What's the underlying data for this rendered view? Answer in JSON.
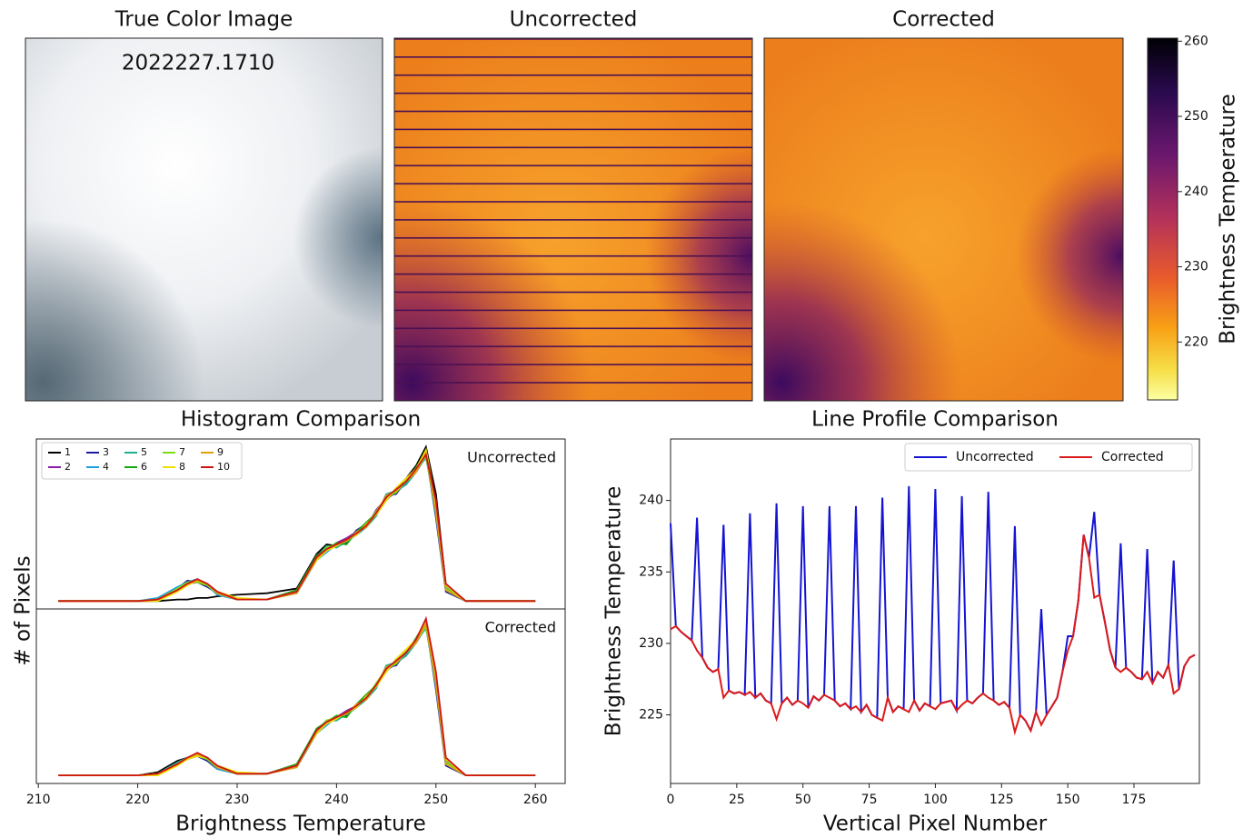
{
  "chart_data": [
    {
      "type": "image",
      "title": "True Color Image",
      "annotation": "2022227.1710"
    },
    {
      "type": "image",
      "title": "Uncorrected"
    },
    {
      "type": "image",
      "title": "Corrected"
    },
    {
      "type": "colorbar",
      "ylabel": "Brightness Temperature",
      "ylim": [
        212.3,
        260.4
      ],
      "yticks": [
        220,
        230,
        240,
        250,
        260
      ]
    },
    {
      "type": "line",
      "title": "Histogram Comparison",
      "label": "Uncorrected",
      "ylabel": "# of Pixels",
      "x": [
        212,
        216,
        220,
        222,
        224,
        225,
        226,
        227,
        228,
        230,
        233,
        236,
        238,
        239,
        240,
        241,
        242,
        243,
        244,
        245,
        246,
        247,
        248,
        249,
        250,
        251,
        253,
        256,
        260
      ],
      "xlim": [
        209.8,
        263
      ],
      "ylim": [
        -3,
        105
      ],
      "series": [
        {
          "name": "1",
          "color": "#000000",
          "values": [
            2,
            2,
            2,
            2,
            3,
            3,
            4,
            4,
            5,
            6,
            7,
            10,
            32,
            38,
            37,
            41,
            44,
            52,
            57,
            66,
            73,
            80,
            88,
            100,
            70,
            12,
            2,
            2,
            2
          ]
        },
        {
          "name": "2",
          "color": "#8a1fa8",
          "values": [
            2,
            2,
            2,
            3,
            9,
            13,
            14,
            12,
            7,
            3,
            3,
            9,
            29,
            34,
            39,
            42,
            46,
            49,
            60,
            67,
            71,
            77,
            84,
            94,
            58,
            9,
            2,
            2,
            2
          ]
        },
        {
          "name": "3",
          "color": "#1c1ca0",
          "values": [
            2,
            2,
            2,
            3,
            10,
            15,
            14,
            11,
            7,
            3,
            3,
            8,
            31,
            36,
            37,
            39,
            47,
            51,
            57,
            69,
            70,
            79,
            86,
            96,
            55,
            8,
            2,
            2,
            2
          ]
        },
        {
          "name": "4",
          "color": "#1f9fe0",
          "values": [
            2,
            2,
            2,
            4,
            11,
            14,
            16,
            12,
            6,
            3,
            3,
            7,
            28,
            33,
            38,
            41,
            45,
            50,
            59,
            66,
            74,
            77,
            85,
            93,
            62,
            11,
            2,
            2,
            2
          ]
        },
        {
          "name": "5",
          "color": "#1fae90",
          "values": [
            2,
            2,
            2,
            3,
            10,
            13,
            15,
            13,
            7,
            3,
            3,
            8,
            30,
            37,
            36,
            40,
            44,
            49,
            56,
            70,
            72,
            76,
            84,
            95,
            57,
            9,
            2,
            2,
            2
          ]
        },
        {
          "name": "6",
          "color": "#12a812",
          "values": [
            2,
            2,
            2,
            3,
            9,
            14,
            15,
            12,
            8,
            3,
            3,
            9,
            31,
            35,
            39,
            38,
            46,
            52,
            58,
            67,
            73,
            78,
            87,
            97,
            63,
            12,
            2,
            2,
            2
          ]
        },
        {
          "name": "7",
          "color": "#7cdc10",
          "values": [
            2,
            2,
            2,
            3,
            10,
            14,
            14,
            12,
            7,
            3,
            3,
            8,
            29,
            36,
            38,
            40,
            45,
            50,
            59,
            68,
            71,
            79,
            85,
            94,
            60,
            10,
            2,
            2,
            2
          ]
        },
        {
          "name": "8",
          "color": "#ece000",
          "values": [
            2,
            2,
            2,
            2,
            8,
            12,
            15,
            13,
            8,
            4,
            3,
            8,
            28,
            34,
            37,
            41,
            44,
            51,
            57,
            66,
            74,
            80,
            86,
            98,
            64,
            12,
            2,
            2,
            2
          ]
        },
        {
          "name": "9",
          "color": "#e0a010",
          "values": [
            2,
            2,
            2,
            3,
            9,
            13,
            15,
            13,
            7,
            3,
            3,
            7,
            29,
            35,
            38,
            40,
            46,
            49,
            58,
            69,
            72,
            78,
            84,
            96,
            59,
            9,
            2,
            2,
            2
          ]
        },
        {
          "name": "10",
          "color": "#d01414",
          "values": [
            2,
            2,
            2,
            3,
            9,
            13,
            16,
            13,
            8,
            3,
            3,
            8,
            30,
            35,
            38,
            41,
            45,
            50,
            58,
            68,
            73,
            78,
            86,
            95,
            66,
            13,
            2,
            2,
            2
          ]
        }
      ]
    },
    {
      "type": "line",
      "label": "Corrected",
      "xlabel": "Brightness Temperature",
      "x": [
        212,
        216,
        220,
        222,
        224,
        225,
        226,
        227,
        228,
        230,
        233,
        236,
        238,
        239,
        240,
        241,
        242,
        243,
        244,
        245,
        246,
        247,
        248,
        249,
        250,
        251,
        253,
        256,
        260
      ],
      "xlim": [
        209.8,
        263
      ],
      "xticks": [
        210,
        220,
        230,
        240,
        250,
        260
      ],
      "ylim": [
        -3,
        105
      ],
      "series": [
        {
          "color": "#000000",
          "values": [
            2,
            2,
            2,
            4,
            11,
            13,
            14,
            11,
            6,
            3,
            3,
            8,
            30,
            35,
            37,
            40,
            44,
            50,
            57,
            67,
            72,
            78,
            85,
            96,
            58,
            9,
            2,
            2,
            2
          ]
        },
        {
          "color": "#8a1fa8",
          "values": [
            2,
            2,
            2,
            3,
            9,
            12,
            14,
            12,
            7,
            3,
            3,
            9,
            29,
            34,
            38,
            42,
            45,
            49,
            59,
            67,
            71,
            77,
            84,
            94,
            58,
            9,
            2,
            2,
            2
          ]
        },
        {
          "color": "#1c1ca0",
          "values": [
            2,
            2,
            2,
            3,
            10,
            13,
            14,
            11,
            7,
            3,
            3,
            8,
            31,
            35,
            37,
            39,
            46,
            51,
            57,
            69,
            70,
            79,
            86,
            96,
            55,
            8,
            2,
            2,
            2
          ]
        },
        {
          "color": "#1f9fe0",
          "values": [
            2,
            2,
            2,
            3,
            10,
            13,
            15,
            12,
            6,
            3,
            3,
            7,
            28,
            33,
            38,
            41,
            45,
            50,
            59,
            66,
            74,
            77,
            85,
            93,
            62,
            11,
            2,
            2,
            2
          ]
        },
        {
          "color": "#1fae90",
          "values": [
            2,
            2,
            2,
            3,
            10,
            13,
            15,
            13,
            7,
            3,
            3,
            8,
            30,
            36,
            36,
            40,
            44,
            49,
            56,
            70,
            72,
            76,
            84,
            95,
            57,
            9,
            2,
            2,
            2
          ]
        },
        {
          "color": "#12a812",
          "values": [
            2,
            2,
            2,
            3,
            9,
            13,
            15,
            12,
            8,
            3,
            3,
            9,
            31,
            35,
            39,
            38,
            46,
            52,
            58,
            67,
            73,
            78,
            87,
            97,
            63,
            12,
            2,
            2,
            2
          ]
        },
        {
          "color": "#7cdc10",
          "values": [
            2,
            2,
            2,
            3,
            9,
            13,
            14,
            12,
            7,
            3,
            3,
            8,
            29,
            36,
            38,
            40,
            45,
            50,
            59,
            68,
            71,
            79,
            85,
            94,
            60,
            10,
            2,
            2,
            2
          ]
        },
        {
          "color": "#ece000",
          "values": [
            2,
            2,
            2,
            2,
            8,
            12,
            14,
            13,
            8,
            4,
            3,
            8,
            28,
            34,
            37,
            41,
            44,
            51,
            57,
            66,
            74,
            80,
            86,
            98,
            64,
            12,
            2,
            2,
            2
          ]
        },
        {
          "color": "#e0a010",
          "values": [
            2,
            2,
            2,
            3,
            9,
            13,
            15,
            13,
            7,
            3,
            3,
            7,
            29,
            35,
            38,
            40,
            46,
            49,
            58,
            69,
            72,
            78,
            84,
            96,
            59,
            9,
            2,
            2,
            2
          ]
        },
        {
          "color": "#d01414",
          "values": [
            2,
            2,
            2,
            3,
            9,
            13,
            16,
            13,
            8,
            3,
            3,
            8,
            30,
            35,
            38,
            41,
            45,
            50,
            58,
            68,
            73,
            78,
            86,
            99,
            66,
            13,
            2,
            2,
            2
          ]
        }
      ]
    },
    {
      "type": "line",
      "title": "Line Profile Comparison",
      "xlabel": "Vertical Pixel Number",
      "ylabel": "Brightness Temperature",
      "legend": "upper right",
      "xlim": [
        0,
        199.7
      ],
      "xticks": [
        0,
        25,
        50,
        75,
        100,
        125,
        150,
        175
      ],
      "ylim": [
        220.2,
        244.3
      ],
      "yticks": [
        225,
        230,
        235,
        240
      ],
      "x": [
        0,
        2,
        4,
        6,
        8,
        10,
        12,
        14,
        16,
        18,
        20,
        22,
        24,
        26,
        28,
        30,
        32,
        34,
        36,
        38,
        40,
        42,
        44,
        46,
        48,
        50,
        52,
        54,
        56,
        58,
        60,
        62,
        64,
        66,
        68,
        70,
        72,
        74,
        76,
        78,
        80,
        82,
        84,
        86,
        88,
        90,
        92,
        94,
        96,
        98,
        100,
        102,
        104,
        106,
        108,
        110,
        112,
        114,
        116,
        118,
        120,
        122,
        124,
        126,
        128,
        130,
        132,
        134,
        136,
        138,
        140,
        142,
        144,
        146,
        148,
        150,
        152,
        154,
        156,
        158,
        160,
        162,
        164,
        166,
        168,
        170,
        172,
        174,
        176,
        178,
        180,
        182,
        184,
        186,
        188,
        190,
        192,
        194,
        196,
        198
      ],
      "series": [
        {
          "name": "Uncorrected",
          "color": "#1414d2",
          "values": [
            238.4,
            231.2,
            230.8,
            230.5,
            230.2,
            238.8,
            229,
            228.3,
            228,
            228.2,
            238.3,
            226.7,
            226.5,
            226.6,
            226.4,
            239.1,
            226.2,
            226.5,
            226,
            225.8,
            239.8,
            225.8,
            226.2,
            225.7,
            226,
            239.6,
            225.5,
            226.3,
            226,
            226.4,
            239.6,
            226,
            225.6,
            225.8,
            225.4,
            239.6,
            225.2,
            225.7,
            225,
            224.8,
            240.2,
            226.2,
            225.2,
            225.6,
            225.4,
            241,
            226,
            225.3,
            225.8,
            225.6,
            240.8,
            225.8,
            225.9,
            226,
            225.3,
            240.3,
            226,
            225.8,
            226.2,
            226.5,
            240.6,
            226,
            225.7,
            225.9,
            225.5,
            238.2,
            225,
            224.6,
            223.9,
            225.2,
            232.4,
            225,
            225.6,
            226.2,
            228,
            230.5,
            230.5,
            233,
            237.6,
            236,
            239.2,
            233.4,
            231.5,
            229.5,
            228.3,
            237,
            228.3,
            228,
            227.6,
            227.5,
            236.6,
            227.2,
            228,
            227.6,
            228.5,
            235.8,
            226.8,
            228.4,
            229,
            229.2
          ]
        },
        {
          "name": "Corrected",
          "color": "#dc1a1a",
          "values": [
            231,
            231.2,
            230.8,
            230.5,
            230.2,
            229.5,
            229,
            228.3,
            228,
            228.2,
            226.2,
            226.7,
            226.5,
            226.6,
            226.4,
            226.6,
            226.2,
            226.5,
            226,
            225.8,
            224.7,
            225.8,
            226.2,
            225.7,
            226,
            225.8,
            225.5,
            226.3,
            226,
            226.4,
            226.2,
            226,
            225.6,
            225.8,
            225.4,
            225.6,
            225.2,
            225.7,
            225,
            224.8,
            224.6,
            226.2,
            225.2,
            225.6,
            225.4,
            225.2,
            226,
            225.3,
            225.8,
            225.6,
            225.4,
            225.8,
            225.9,
            226,
            225.3,
            225.7,
            226,
            225.8,
            226.2,
            226.5,
            226.2,
            226,
            225.7,
            225.9,
            225.5,
            223.8,
            225,
            224.6,
            223.9,
            225.2,
            224.3,
            225,
            225.6,
            226.2,
            228,
            229.5,
            230.5,
            233,
            237.6,
            236,
            233.2,
            233.4,
            231.5,
            229.5,
            228.3,
            228,
            228.3,
            228,
            227.6,
            227.5,
            228,
            227.2,
            228,
            227.6,
            228.5,
            226.5,
            226.8,
            228.4,
            229,
            229.2
          ]
        }
      ]
    }
  ]
}
